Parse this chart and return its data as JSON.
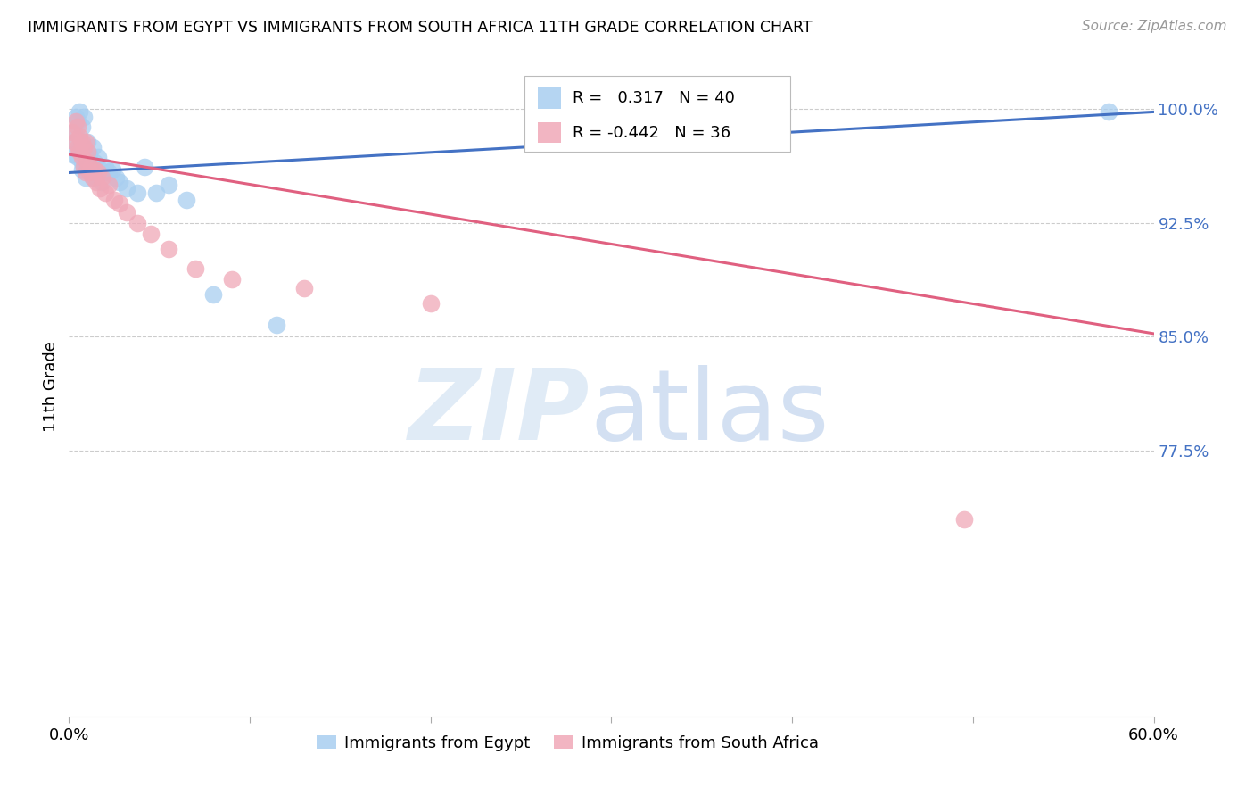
{
  "title": "IMMIGRANTS FROM EGYPT VS IMMIGRANTS FROM SOUTH AFRICA 11TH GRADE CORRELATION CHART",
  "source": "Source: ZipAtlas.com",
  "ylabel": "11th Grade",
  "ytick_labels": [
    "100.0%",
    "92.5%",
    "85.0%",
    "77.5%"
  ],
  "ytick_values": [
    1.0,
    0.925,
    0.85,
    0.775
  ],
  "xlim": [
    0.0,
    0.6
  ],
  "ylim": [
    0.6,
    1.035
  ],
  "r_egypt": 0.317,
  "n_egypt": 40,
  "r_sa": -0.442,
  "n_sa": 36,
  "egypt_color": "#A8CEF0",
  "sa_color": "#F0A8B8",
  "egypt_line_color": "#4472C4",
  "sa_line_color": "#E06080",
  "legend_label_egypt": "Immigrants from Egypt",
  "legend_label_sa": "Immigrants from South Africa",
  "egypt_line_x0": 0.0,
  "egypt_line_x1": 0.6,
  "egypt_line_y0": 0.958,
  "egypt_line_y1": 0.998,
  "sa_line_x0": 0.0,
  "sa_line_x1": 0.6,
  "sa_line_y0": 0.97,
  "sa_line_y1": 0.852,
  "egypt_scatter_x": [
    0.002,
    0.003,
    0.004,
    0.004,
    0.005,
    0.005,
    0.006,
    0.006,
    0.007,
    0.007,
    0.007,
    0.008,
    0.008,
    0.009,
    0.009,
    0.01,
    0.01,
    0.011,
    0.012,
    0.013,
    0.013,
    0.014,
    0.015,
    0.016,
    0.017,
    0.018,
    0.02,
    0.022,
    0.024,
    0.026,
    0.028,
    0.032,
    0.038,
    0.042,
    0.048,
    0.055,
    0.065,
    0.08,
    0.115,
    0.575
  ],
  "egypt_scatter_y": [
    0.97,
    0.985,
    0.978,
    0.995,
    0.968,
    0.992,
    0.975,
    0.998,
    0.965,
    0.988,
    0.96,
    0.972,
    0.995,
    0.968,
    0.955,
    0.978,
    0.962,
    0.97,
    0.96,
    0.975,
    0.955,
    0.965,
    0.958,
    0.968,
    0.96,
    0.952,
    0.962,
    0.958,
    0.96,
    0.955,
    0.952,
    0.948,
    0.945,
    0.962,
    0.945,
    0.95,
    0.94,
    0.878,
    0.858,
    0.998
  ],
  "sa_scatter_x": [
    0.002,
    0.003,
    0.004,
    0.005,
    0.005,
    0.006,
    0.006,
    0.007,
    0.007,
    0.008,
    0.008,
    0.009,
    0.009,
    0.01,
    0.01,
    0.011,
    0.012,
    0.013,
    0.014,
    0.015,
    0.016,
    0.017,
    0.018,
    0.02,
    0.022,
    0.025,
    0.028,
    0.032,
    0.038,
    0.045,
    0.055,
    0.07,
    0.09,
    0.13,
    0.2,
    0.495
  ],
  "sa_scatter_y": [
    0.985,
    0.978,
    0.992,
    0.975,
    0.988,
    0.982,
    0.972,
    0.978,
    0.968,
    0.975,
    0.962,
    0.978,
    0.958,
    0.965,
    0.972,
    0.958,
    0.962,
    0.955,
    0.96,
    0.952,
    0.958,
    0.948,
    0.955,
    0.945,
    0.95,
    0.94,
    0.938,
    0.932,
    0.925,
    0.918,
    0.908,
    0.895,
    0.888,
    0.882,
    0.872,
    0.73
  ]
}
